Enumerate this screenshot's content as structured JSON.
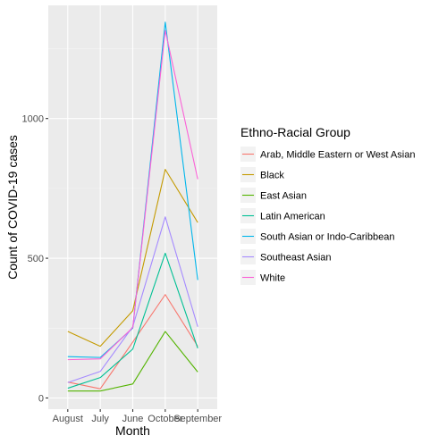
{
  "chart_data": {
    "type": "line",
    "title": "",
    "xlabel": "Month",
    "ylabel": "Count of COVID-19 cases",
    "categories": [
      "August",
      "July",
      "June",
      "October",
      "September"
    ],
    "ylim": [
      -40,
      1405
    ],
    "yticks": [
      0,
      500,
      1000
    ],
    "ytick_labels": [
      "0",
      "500",
      "1000"
    ],
    "grid": true,
    "legend_position": "right",
    "legend_title": "Ethno-Racial Group",
    "series": [
      {
        "name": "Arab, Middle Eastern or West Asian",
        "color": "#F8766D",
        "values": [
          57,
          33,
          200,
          370,
          185
        ]
      },
      {
        "name": "Black",
        "color": "#C49A00",
        "values": [
          238,
          185,
          312,
          818,
          628
        ]
      },
      {
        "name": "East Asian",
        "color": "#53B400",
        "values": [
          25,
          25,
          50,
          238,
          93
        ]
      },
      {
        "name": "Latin American",
        "color": "#00C094",
        "values": [
          35,
          73,
          175,
          518,
          178
        ]
      },
      {
        "name": "South Asian or Indo-Caribbean",
        "color": "#00B6EB",
        "values": [
          148,
          145,
          250,
          1345,
          422
        ]
      },
      {
        "name": "Southeast Asian",
        "color": "#A58AFF",
        "values": [
          55,
          95,
          255,
          648,
          255
        ]
      },
      {
        "name": "White",
        "color": "#FB61D7",
        "values": [
          137,
          140,
          252,
          1315,
          783
        ]
      }
    ]
  }
}
